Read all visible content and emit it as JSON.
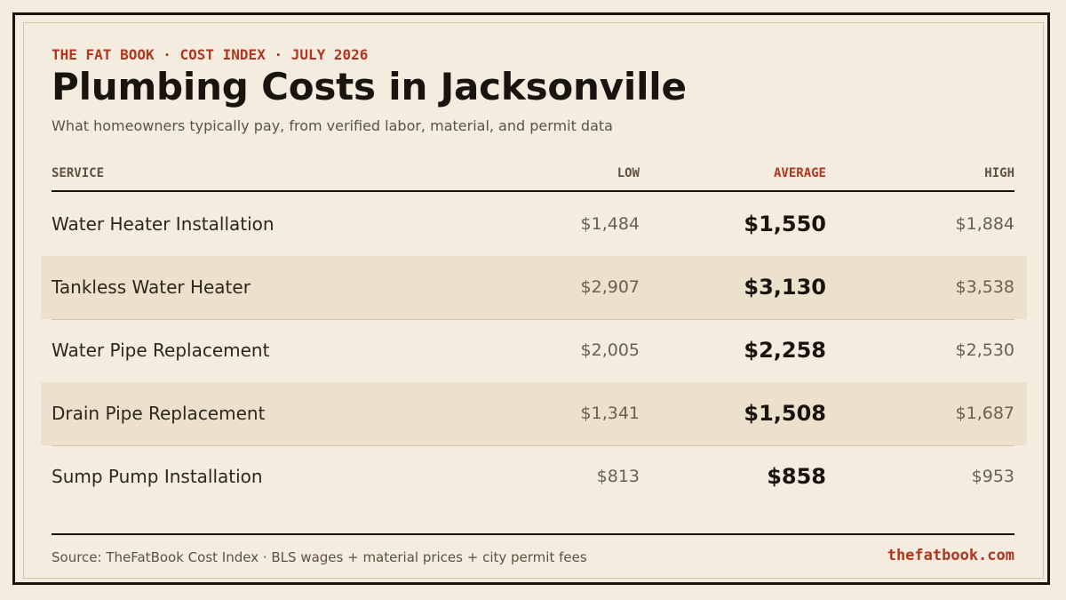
{
  "header": {
    "eyebrow": "THE FAT BOOK · COST INDEX · JULY 2026",
    "title": "Plumbing Costs in Jacksonville",
    "subtitle": "What homeowners typically pay, from verified labor, material, and permit data"
  },
  "table": {
    "columns": {
      "service": "SERVICE",
      "low": "LOW",
      "average": "AVERAGE",
      "high": "HIGH"
    },
    "rows": [
      {
        "service": "Water Heater Installation",
        "low": "$1,484",
        "average": "$1,550",
        "high": "$1,884"
      },
      {
        "service": "Tankless Water Heater",
        "low": "$2,907",
        "average": "$3,130",
        "high": "$3,538"
      },
      {
        "service": "Water Pipe Replacement",
        "low": "$2,005",
        "average": "$2,258",
        "high": "$2,530"
      },
      {
        "service": "Drain Pipe Replacement",
        "low": "$1,341",
        "average": "$1,508",
        "high": "$1,687"
      },
      {
        "service": "Sump Pump Installation",
        "low": "$813",
        "average": "$858",
        "high": "$953"
      }
    ]
  },
  "footer": {
    "source": "Source: TheFatBook Cost Index · BLS wages + material prices + city permit fees",
    "site": "thefatbook.com"
  },
  "colors": {
    "background": "#f4ecdf",
    "accent": "#b0361f",
    "ink": "#1a140f",
    "row_shade": "#ece1cd"
  }
}
